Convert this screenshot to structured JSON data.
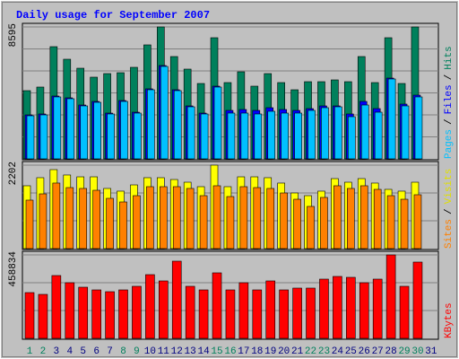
{
  "chart_data": [
    {
      "type": "bar",
      "title": "Daily usage for September 2007",
      "ylim": [
        0,
        8595
      ],
      "yticks": [
        8595
      ],
      "legend_separator": "/",
      "series": [
        {
          "name": "Hits",
          "color": "#00805c",
          "values": [
            4444,
            4678,
            7309,
            6490,
            5905,
            5321,
            5555,
            5613,
            5964,
            7426,
            8595,
            6666,
            5847,
            4911,
            7893,
            4970,
            5672,
            4736,
            5555,
            4970,
            4502,
            5028,
            5028,
            5145,
            5028,
            6666,
            4970,
            7893,
            4911,
            8595,
            0
          ]
        },
        {
          "name": "Files",
          "color": "#0000ff",
          "values": [
            2865,
            2924,
            4093,
            3976,
            3508,
            3742,
            2982,
            3801,
            3040,
            4561,
            6081,
            4502,
            3450,
            2982,
            4736,
            3157,
            3216,
            3157,
            3333,
            3216,
            3157,
            3274,
            3450,
            3450,
            2924,
            3742,
            3274,
            5262,
            3567,
            4151,
            0
          ]
        },
        {
          "name": "Pages",
          "color": "#00c0ff",
          "values": [
            2807,
            2865,
            4035,
            3918,
            3450,
            3684,
            2924,
            3742,
            2982,
            4502,
            6022,
            4444,
            3391,
            2924,
            4678,
            2982,
            2982,
            2924,
            3099,
            2982,
            2982,
            3157,
            3333,
            3391,
            2748,
            3508,
            3040,
            5204,
            3450,
            4035,
            0
          ]
        }
      ]
    },
    {
      "type": "bar",
      "ylim": [
        0,
        2202
      ],
      "yticks": [
        2202
      ],
      "legend_separator": "/",
      "series": [
        {
          "name": "Visits",
          "color": "#ffff00",
          "values": [
            1658,
            1871,
            2084,
            1942,
            1894,
            1894,
            1587,
            1516,
            1681,
            1871,
            1871,
            1823,
            1752,
            1634,
            2202,
            1634,
            1894,
            1894,
            1871,
            1729,
            1468,
            1397,
            1516,
            1847,
            1752,
            1847,
            1729,
            1563,
            1516,
            1752,
            0
          ]
        },
        {
          "name": "Sites",
          "color": "#ff8000",
          "values": [
            1279,
            1444,
            1729,
            1610,
            1587,
            1539,
            1326,
            1231,
            1397,
            1634,
            1634,
            1634,
            1587,
            1397,
            1658,
            1373,
            1634,
            1610,
            1587,
            1468,
            1302,
            1113,
            1350,
            1658,
            1587,
            1658,
            1563,
            1397,
            1302,
            1421,
            0
          ]
        }
      ]
    },
    {
      "type": "bar",
      "ylim": [
        0,
        458834
      ],
      "yticks": [
        458834
      ],
      "categories": [
        "1",
        "2",
        "3",
        "4",
        "5",
        "6",
        "7",
        "8",
        "9",
        "10",
        "11",
        "12",
        "13",
        "14",
        "15",
        "16",
        "17",
        "18",
        "19",
        "20",
        "21",
        "22",
        "23",
        "24",
        "25",
        "26",
        "27",
        "28",
        "29",
        "30",
        "31"
      ],
      "category_colors": [
        "#00805c",
        "#00805c",
        "#000080",
        "#000080",
        "#000080",
        "#000080",
        "#000080",
        "#00805c",
        "#00805c",
        "#000080",
        "#000080",
        "#000080",
        "#000080",
        "#000080",
        "#00805c",
        "#00805c",
        "#000080",
        "#000080",
        "#000080",
        "#000080",
        "#000080",
        "#00805c",
        "#00805c",
        "#000080",
        "#000080",
        "#000080",
        "#000080",
        "#000080",
        "#00805c",
        "#00805c",
        "#000080"
      ],
      "series": [
        {
          "name": "KBytes",
          "color": "#ff0000",
          "values": [
            251634,
            241766,
            345380,
            305908,
            281238,
            266436,
            256568,
            266436,
            286172,
            350314,
            315776,
            424324,
            286172,
            266436,
            360182,
            266436,
            305908,
            266436,
            315776,
            266436,
            276304,
            276304,
            325644,
            340446,
            335512,
            305908,
            325644,
            458834,
            286172,
            419390,
            0
          ]
        }
      ]
    }
  ]
}
